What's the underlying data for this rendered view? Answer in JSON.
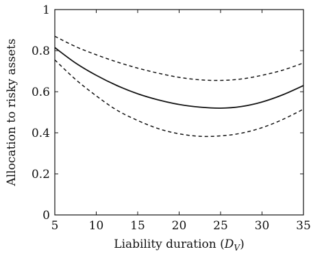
{
  "chart_data": {
    "type": "line",
    "title": "",
    "xlabel": "Liability duration (",
    "xlabel_symbol": "D",
    "xlabel_subscript": "V",
    "xlabel_close": ")",
    "ylabel": "Allocation to risky assets",
    "xlim": [
      5,
      35
    ],
    "ylim": [
      0,
      1
    ],
    "xticks": [
      "5",
      "10",
      "15",
      "20",
      "25",
      "30",
      "35"
    ],
    "yticks": [
      "0",
      "0.2",
      "0.4",
      "0.6",
      "0.8",
      "1"
    ],
    "grid": false,
    "legend": "none",
    "x": [
      5,
      7.5,
      10,
      12.5,
      15,
      17.5,
      20,
      22.5,
      25,
      27.5,
      30,
      32.5,
      35
    ],
    "series": [
      {
        "style": "dashed",
        "values": [
          0.87,
          0.82,
          0.78,
          0.745,
          0.715,
          0.69,
          0.67,
          0.658,
          0.655,
          0.662,
          0.68,
          0.705,
          0.74
        ]
      },
      {
        "style": "solid",
        "values": [
          0.815,
          0.74,
          0.68,
          0.63,
          0.59,
          0.56,
          0.538,
          0.525,
          0.52,
          0.528,
          0.55,
          0.585,
          0.63
        ]
      },
      {
        "style": "dashed",
        "values": [
          0.755,
          0.66,
          0.58,
          0.51,
          0.46,
          0.42,
          0.395,
          0.383,
          0.385,
          0.398,
          0.425,
          0.465,
          0.515
        ]
      }
    ]
  }
}
